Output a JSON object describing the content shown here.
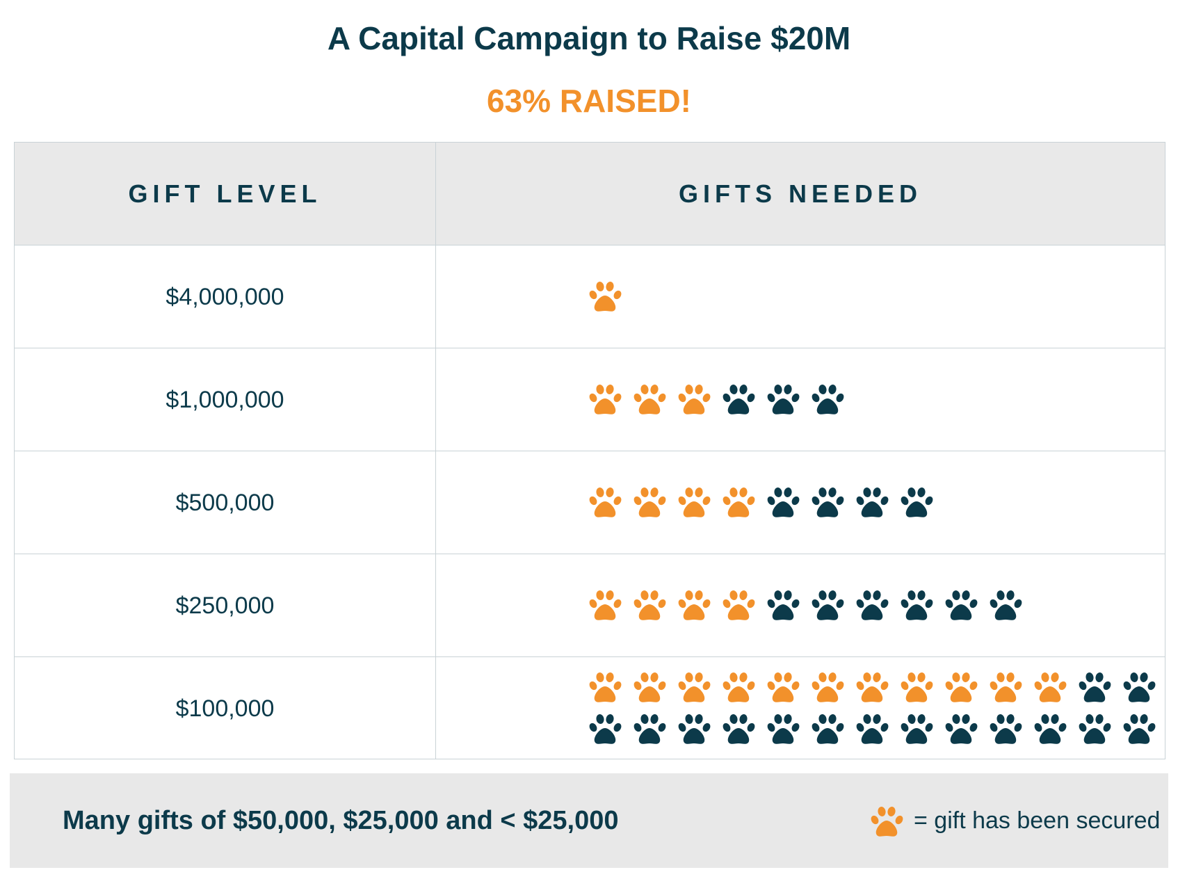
{
  "title": "A Capital Campaign to Raise $20M",
  "subtitle": "63% RAISED!",
  "colors": {
    "secured": "#f2912b",
    "needed": "#0c3a4a",
    "text": "#0c3a4a",
    "header_bg": "#e9e9e9",
    "footer_bg": "#e8e8e8"
  },
  "table": {
    "col_gift_level": "GIFT LEVEL",
    "col_gifts_needed": "GIFTS NEEDED"
  },
  "footer": {
    "note": "Many gifts of $50,000, $25,000 and < $25,000",
    "legend_text": "= gift has been secured",
    "legend_icon": "paw-print-icon"
  },
  "chart_data": {
    "type": "table",
    "title": "A Capital Campaign to Raise $20M",
    "subtitle": "63% RAISED!",
    "columns": [
      "GIFT LEVEL",
      "GIFTS NEEDED"
    ],
    "rows": [
      {
        "level": "$4,000,000",
        "secured": 1,
        "needed": 1
      },
      {
        "level": "$1,000,000",
        "secured": 3,
        "needed": 6
      },
      {
        "level": "$500,000",
        "secured": 4,
        "needed": 8
      },
      {
        "level": "$250,000",
        "secured": 4,
        "needed": 10
      },
      {
        "level": "$100,000",
        "secured": 11,
        "needed": 26
      }
    ],
    "legend": "= gift has been secured"
  }
}
